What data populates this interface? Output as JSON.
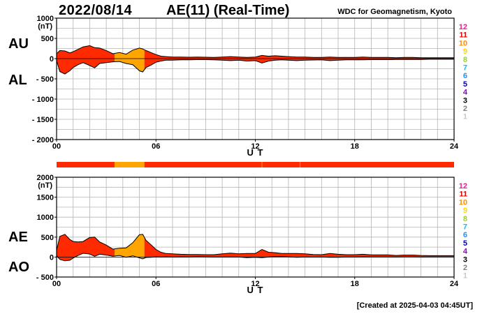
{
  "header": {
    "date": "2022/08/14",
    "title": "AE(11) (Real-Time)",
    "source": "WDC for Geomagnetism, Kyoto"
  },
  "footer": {
    "created": "[Created at 2025-04-03 04:45UT]"
  },
  "labels": {
    "panel1_upper": "AU",
    "panel1_lower": "AL",
    "panel2_upper": "AE",
    "panel2_lower": "AO"
  },
  "colors": {
    "quality_red": "#ff2a00",
    "quality_orange": "#ffa500",
    "trace": "#000000",
    "grid": "#b4b4b4"
  },
  "legend_levels": [
    {
      "label": "12",
      "color": "#ff1493"
    },
    {
      "label": "11",
      "color": "#e00000"
    },
    {
      "label": "10",
      "color": "#ff8c00"
    },
    {
      "label": "9",
      "color": "#ffd700"
    },
    {
      "label": "8",
      "color": "#9acd32"
    },
    {
      "label": "7",
      "color": "#00bfff"
    },
    {
      "label": "6",
      "color": "#1e90ff"
    },
    {
      "label": "5",
      "color": "#0000cd"
    },
    {
      "label": "4",
      "color": "#9400d3"
    },
    {
      "label": "3",
      "color": "#000000"
    },
    {
      "label": "2",
      "color": "#808080"
    },
    {
      "label": "1",
      "color": "#c8c8c8"
    }
  ],
  "chart_data": [
    {
      "type": "area",
      "name": "AU/AL",
      "xlabel": "U T",
      "ylabel": "(nT)",
      "xlim": [
        0,
        24
      ],
      "ylim": [
        -2000,
        1000
      ],
      "xticks": [
        0,
        6,
        12,
        18,
        24
      ],
      "xtick_labels": [
        "00",
        "06",
        "12",
        "18",
        "24"
      ],
      "yticks": [
        1000,
        500,
        0,
        -500,
        -1000,
        -1500,
        -2000
      ],
      "ytick_labels": [
        "1000",
        "500",
        "0",
        "- 500",
        "- 1000",
        "- 1500",
        "- 2000"
      ],
      "grid": true,
      "x": [
        0.0,
        0.2,
        0.5,
        0.8,
        1.0,
        1.3,
        1.6,
        2.0,
        2.3,
        2.6,
        3.0,
        3.4,
        3.8,
        4.2,
        4.6,
        5.0,
        5.2,
        5.4,
        5.7,
        6.0,
        6.3,
        6.6,
        7.0,
        7.5,
        8.0,
        8.5,
        9.0,
        9.5,
        10.0,
        10.5,
        11.0,
        11.5,
        12.0,
        12.4,
        12.8,
        13.2,
        13.6,
        14.0,
        14.5,
        15.0,
        15.5,
        16.0,
        16.5,
        17.0,
        17.5,
        18.0,
        18.5,
        19.0,
        19.5,
        20.0,
        20.5,
        21.0,
        21.5,
        22.0,
        22.5,
        23.0,
        23.5,
        24.0
      ],
      "series": [
        {
          "name": "AU",
          "values": [
            120,
            200,
            190,
            140,
            170,
            230,
            290,
            320,
            270,
            260,
            200,
            120,
            150,
            110,
            210,
            260,
            240,
            200,
            150,
            100,
            60,
            50,
            40,
            40,
            35,
            40,
            35,
            30,
            40,
            50,
            40,
            30,
            40,
            80,
            60,
            70,
            60,
            50,
            40,
            40,
            30,
            30,
            40,
            30,
            30,
            30,
            40,
            30,
            30,
            30,
            20,
            30,
            30,
            20,
            20,
            20,
            20,
            20
          ]
        },
        {
          "name": "AL",
          "values": [
            -50,
            -320,
            -380,
            -300,
            -220,
            -150,
            -100,
            -170,
            -230,
            -120,
            -100,
            -80,
            -70,
            -120,
            -150,
            -300,
            -330,
            -220,
            -160,
            -90,
            -60,
            -40,
            -40,
            -30,
            -30,
            -25,
            -25,
            -30,
            -40,
            -50,
            -40,
            -60,
            -50,
            -110,
            -60,
            -40,
            -30,
            -40,
            -50,
            -40,
            -35,
            -30,
            -50,
            -40,
            -30,
            -30,
            -30,
            -25,
            -25,
            -25,
            -20,
            -20,
            -20,
            -20,
            -15,
            -15,
            -15,
            -15
          ]
        }
      ],
      "quality_segments": [
        {
          "start": 0,
          "end": 3.5,
          "level": "11"
        },
        {
          "start": 3.5,
          "end": 5.3,
          "level": "10"
        },
        {
          "start": 5.3,
          "end": 24,
          "level": "11"
        }
      ]
    },
    {
      "type": "area",
      "name": "AE/AO",
      "xlabel": "U T",
      "ylabel": "(nT)",
      "xlim": [
        0,
        24
      ],
      "ylim": [
        -500,
        2000
      ],
      "xticks": [
        0,
        6,
        12,
        18,
        24
      ],
      "xtick_labels": [
        "00",
        "06",
        "12",
        "18",
        "24"
      ],
      "yticks": [
        2000,
        1500,
        1000,
        500,
        0,
        -500
      ],
      "ytick_labels": [
        "2000",
        "1500",
        "1000",
        "500",
        "0",
        "- 500"
      ],
      "grid": true,
      "x": [
        0.0,
        0.2,
        0.5,
        0.8,
        1.0,
        1.3,
        1.6,
        2.0,
        2.3,
        2.6,
        3.0,
        3.4,
        3.8,
        4.2,
        4.6,
        5.0,
        5.2,
        5.4,
        5.7,
        6.0,
        6.3,
        6.6,
        7.0,
        7.5,
        8.0,
        8.5,
        9.0,
        9.5,
        10.0,
        10.5,
        11.0,
        11.5,
        12.0,
        12.4,
        12.8,
        13.2,
        13.6,
        14.0,
        14.5,
        15.0,
        15.5,
        16.0,
        16.5,
        17.0,
        17.5,
        18.0,
        18.5,
        19.0,
        19.5,
        20.0,
        20.5,
        21.0,
        21.5,
        22.0,
        22.5,
        23.0,
        23.5,
        24.0
      ],
      "series": [
        {
          "name": "AE",
          "values": [
            170,
            520,
            570,
            440,
            390,
            380,
            390,
            490,
            500,
            380,
            300,
            200,
            220,
            230,
            360,
            560,
            570,
            420,
            310,
            190,
            120,
            90,
            80,
            70,
            65,
            65,
            60,
            60,
            80,
            100,
            80,
            90,
            90,
            190,
            120,
            110,
            90,
            90,
            90,
            80,
            65,
            60,
            90,
            70,
            60,
            60,
            70,
            55,
            55,
            55,
            40,
            50,
            50,
            40,
            35,
            35,
            35,
            35
          ]
        },
        {
          "name": "AO",
          "values": [
            35,
            -60,
            -95,
            -80,
            -25,
            40,
            95,
            75,
            20,
            70,
            50,
            20,
            40,
            -5,
            30,
            -20,
            -45,
            -10,
            -5,
            5,
            0,
            5,
            0,
            5,
            2,
            8,
            5,
            0,
            0,
            0,
            0,
            -15,
            -5,
            -15,
            0,
            15,
            15,
            5,
            -5,
            0,
            -2,
            0,
            -5,
            -5,
            0,
            0,
            5,
            2,
            2,
            2,
            0,
            5,
            5,
            0,
            2,
            2,
            2,
            2
          ]
        }
      ],
      "quality_segments": [
        {
          "start": 0,
          "end": 3.5,
          "level": "11"
        },
        {
          "start": 3.5,
          "end": 5.3,
          "level": "10"
        },
        {
          "start": 5.3,
          "end": 24,
          "level": "11"
        }
      ]
    }
  ],
  "quality_bar": {
    "segments": [
      {
        "start": 0,
        "end": 3.5,
        "level": "11"
      },
      {
        "start": 3.5,
        "end": 5.3,
        "level": "10"
      },
      {
        "start": 5.3,
        "end": 24,
        "level": "11"
      }
    ]
  }
}
